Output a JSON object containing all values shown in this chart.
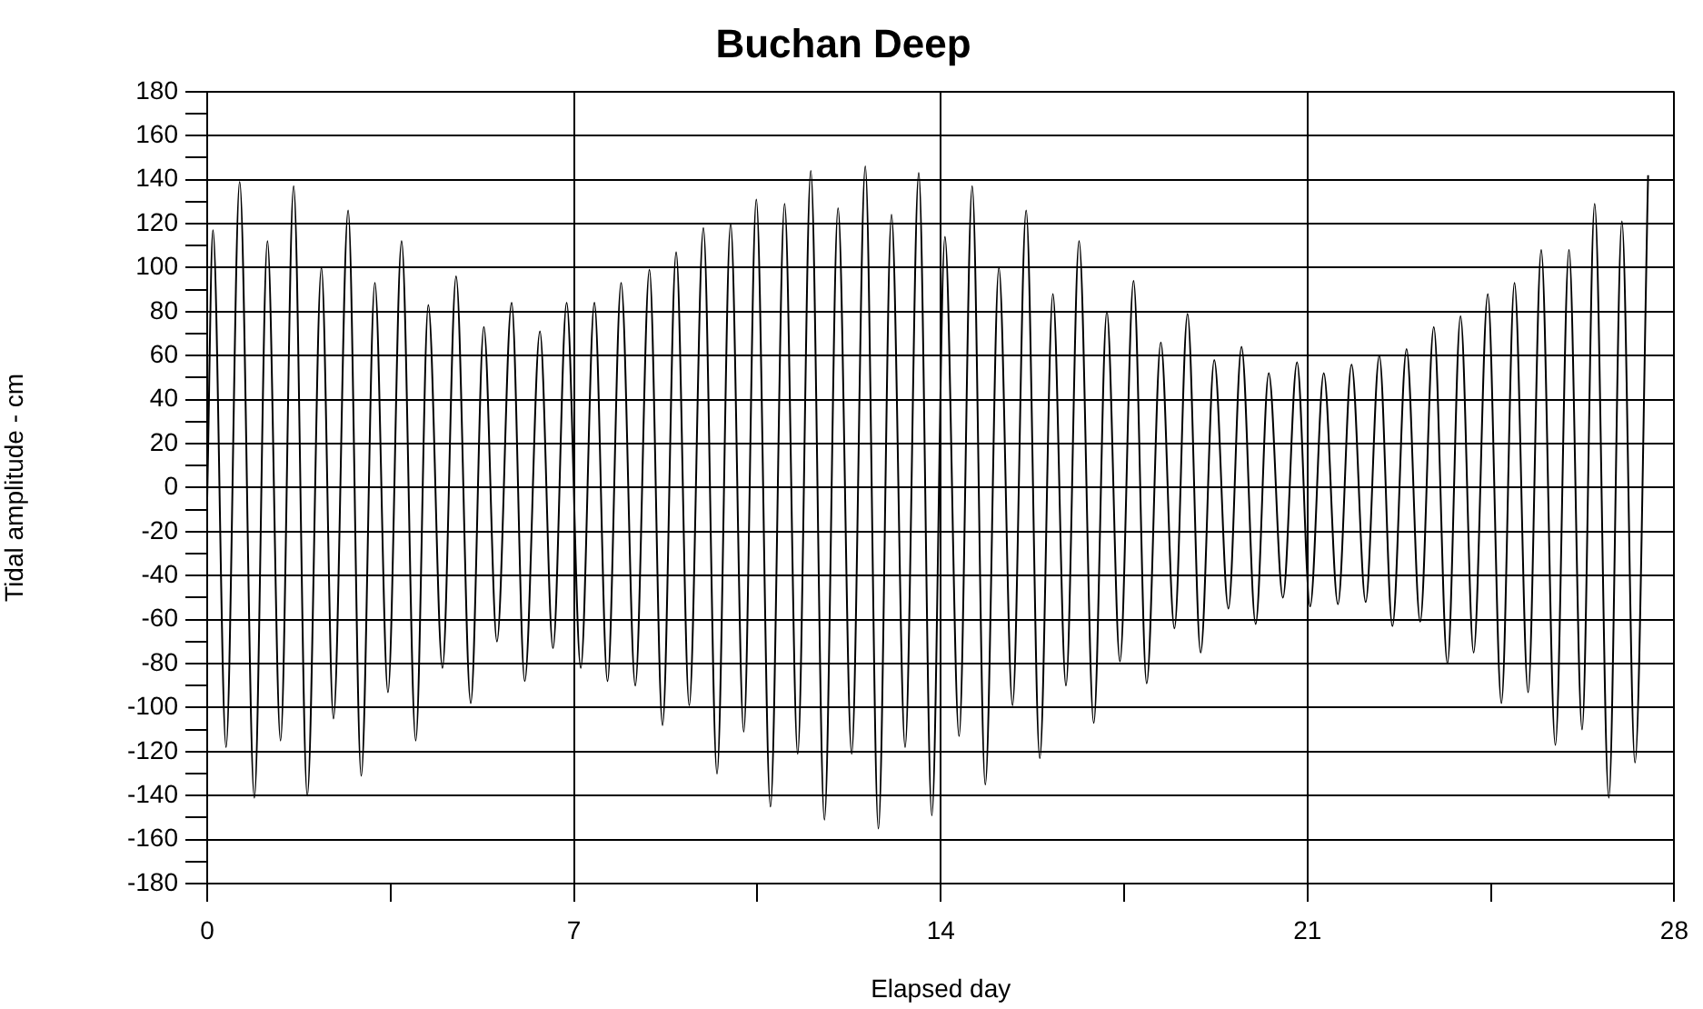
{
  "chart_data": {
    "type": "line",
    "title": "Buchan Deep",
    "xlabel": "Elapsed day",
    "ylabel": "Tidal amplitude - cm",
    "x": [
      0,
      0.11,
      0.36,
      0.62,
      0.9,
      1.15,
      1.4,
      1.65,
      1.91,
      2.18,
      2.41,
      2.69,
      2.94,
      3.2,
      3.45,
      3.71,
      3.98,
      4.22,
      4.49,
      4.75,
      5.03,
      5.28,
      5.53,
      5.81,
      6.06,
      6.35,
      6.6,
      6.86,
      7.13,
      7.39,
      7.64,
      7.9,
      8.17,
      8.44,
      8.69,
      8.95,
      9.2,
      9.47,
      9.73,
      9.99,
      10.24,
      10.48,
      10.75,
      11.02,
      11.27,
      11.52,
      11.78,
      12.04,
      12.3,
      12.56,
      12.81,
      13.06,
      13.32,
      13.58,
      13.83,
      14.08,
      14.35,
      14.6,
      14.85,
      15.11,
      15.37,
      15.63,
      15.89,
      16.14,
      16.39,
      16.64,
      16.92,
      17.17,
      17.42,
      17.68,
      17.93,
      18.2,
      18.46,
      18.71,
      18.96,
      19.22,
      19.49,
      19.74,
      20.01,
      20.26,
      20.53,
      20.8,
      21.05,
      21.31,
      21.58,
      21.84,
      22.11,
      22.37,
      22.62,
      22.89,
      23.15,
      23.41,
      23.67,
      23.92,
      24.17,
      24.44,
      24.7,
      24.95,
      25.21,
      25.46,
      25.73,
      25.99,
      26.24,
      26.48,
      26.75,
      27.0,
      27.25,
      27.5
    ],
    "values": [
      -5,
      117,
      -118,
      139,
      -141,
      112,
      -115,
      137,
      -140,
      100,
      -105,
      126,
      -131,
      93,
      -93,
      112,
      -115,
      83,
      -82,
      96,
      -98,
      73,
      -70,
      84,
      -88,
      71,
      -73,
      84,
      -82,
      84,
      -88,
      93,
      -90,
      99,
      -108,
      107,
      -99,
      118,
      -130,
      120,
      -111,
      131,
      -145,
      129,
      -121,
      144,
      -151,
      127,
      -121,
      146,
      -155,
      124,
      -118,
      143,
      -149,
      114,
      -113,
      137,
      -135,
      100,
      -99,
      126,
      -123,
      88,
      -90,
      112,
      -107,
      80,
      -79,
      94,
      -89,
      66,
      -64,
      79,
      -75,
      58,
      -55,
      64,
      -62,
      52,
      -50,
      57,
      -54,
      52,
      -53,
      56,
      -52,
      60,
      -63,
      63,
      -61,
      73,
      -80,
      78,
      -75,
      88,
      -98,
      93,
      -93,
      108,
      -117,
      108,
      -110,
      129,
      -141,
      121,
      -125,
      142
    ],
    "color": "#000000",
    "line_style": "solid",
    "xlim": [
      0,
      28
    ],
    "xticks": [
      0,
      {
        "value": 3.5,
        "label": null
      },
      7,
      {
        "value": 10.5,
        "label": null
      },
      14,
      {
        "value": 17.5,
        "label": null
      },
      21,
      {
        "value": 24.5,
        "label": null
      },
      28
    ],
    "ylim": [
      -180,
      180
    ],
    "yticks": [
      -180,
      {
        "value": -170,
        "label": null
      },
      -160,
      {
        "value": -150,
        "label": null
      },
      -140,
      {
        "value": -130,
        "label": null
      },
      -120,
      {
        "value": -110,
        "label": null
      },
      -100,
      {
        "value": -90,
        "label": null
      },
      -80,
      {
        "value": -70,
        "label": null
      },
      -60,
      {
        "value": -50,
        "label": null
      },
      -40,
      {
        "value": -30,
        "label": null
      },
      -20,
      {
        "value": -10,
        "label": null
      },
      0,
      {
        "value": 10,
        "label": null
      },
      20,
      {
        "value": 30,
        "label": null
      },
      40,
      {
        "value": 50,
        "label": null
      },
      60,
      {
        "value": 70,
        "label": null
      },
      80,
      {
        "value": 90,
        "label": null
      },
      100,
      {
        "value": 110,
        "label": null
      },
      120,
      {
        "value": 130,
        "label": null
      },
      140,
      {
        "value": 150,
        "label": null
      },
      160,
      {
        "value": 170,
        "label": null
      },
      180
    ],
    "grid": true
  }
}
